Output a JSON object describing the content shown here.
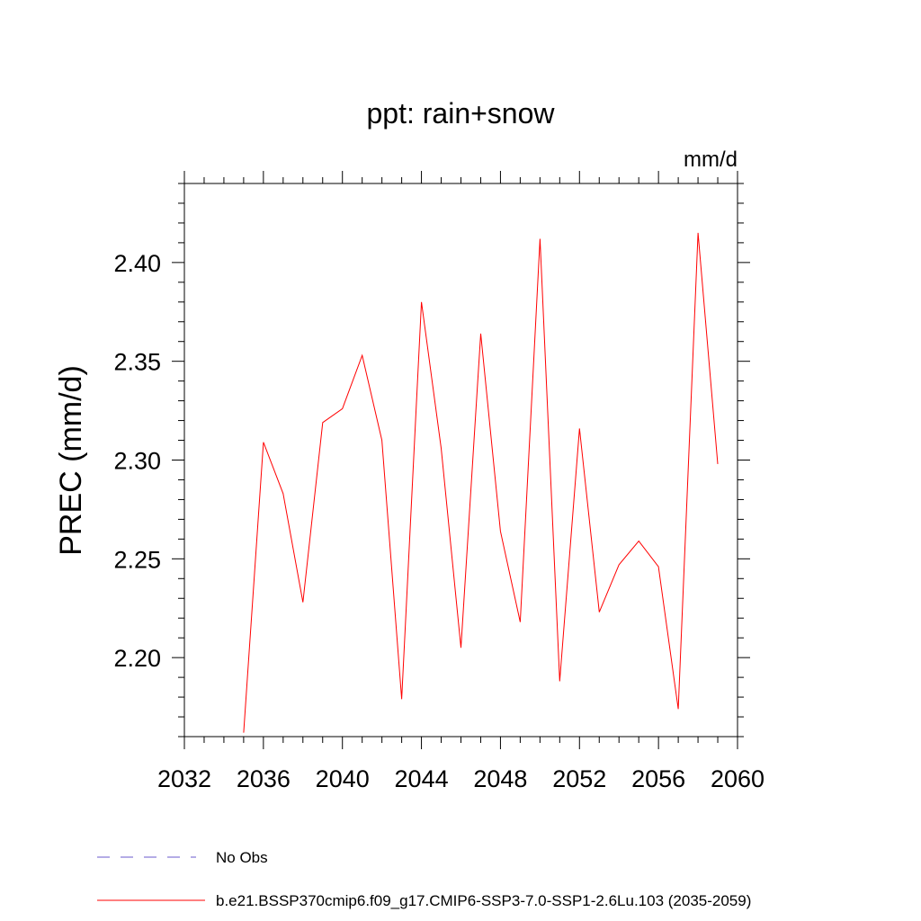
{
  "chart_data": {
    "type": "line",
    "title": "ppt: rain+snow",
    "units": "mm/d",
    "xlabel": "",
    "ylabel": "PREC  (mm/d)",
    "xlim": [
      2032,
      2060
    ],
    "ylim": [
      2.16,
      2.44
    ],
    "x_ticks": [
      2032,
      2036,
      2040,
      2044,
      2048,
      2052,
      2056,
      2060
    ],
    "y_ticks": [
      2.2,
      2.25,
      2.3,
      2.35,
      2.4
    ],
    "y_tick_labels": [
      "2.20",
      "2.25",
      "2.30",
      "2.35",
      "2.40"
    ],
    "grid": false,
    "legend_position": "bottom",
    "series": [
      {
        "name": "b.e21.BSSP370cmip6.f09_g17.CMIP6-SSP3-7.0-SSP1-2.6Lu.103 (2035-2059)",
        "color": "#ff0000",
        "style": "solid",
        "x": [
          2035,
          2036,
          2037,
          2038,
          2039,
          2040,
          2041,
          2042,
          2043,
          2044,
          2045,
          2046,
          2047,
          2048,
          2049,
          2050,
          2051,
          2052,
          2053,
          2054,
          2055,
          2056,
          2057,
          2058,
          2059
        ],
        "values": [
          2.162,
          2.309,
          2.283,
          2.228,
          2.319,
          2.326,
          2.353,
          2.31,
          2.179,
          2.38,
          2.306,
          2.205,
          2.364,
          2.264,
          2.218,
          2.412,
          2.188,
          2.316,
          2.223,
          2.247,
          2.259,
          2.246,
          2.174,
          2.415,
          2.298
        ]
      }
    ],
    "legend": [
      {
        "label": "No Obs",
        "color": "#6a5acd",
        "style": "dashed"
      },
      {
        "label": "b.e21.BSSP370cmip6.f09_g17.CMIP6-SSP3-7.0-SSP1-2.6Lu.103 (2035-2059)",
        "color": "#ff0000",
        "style": "solid"
      }
    ]
  }
}
